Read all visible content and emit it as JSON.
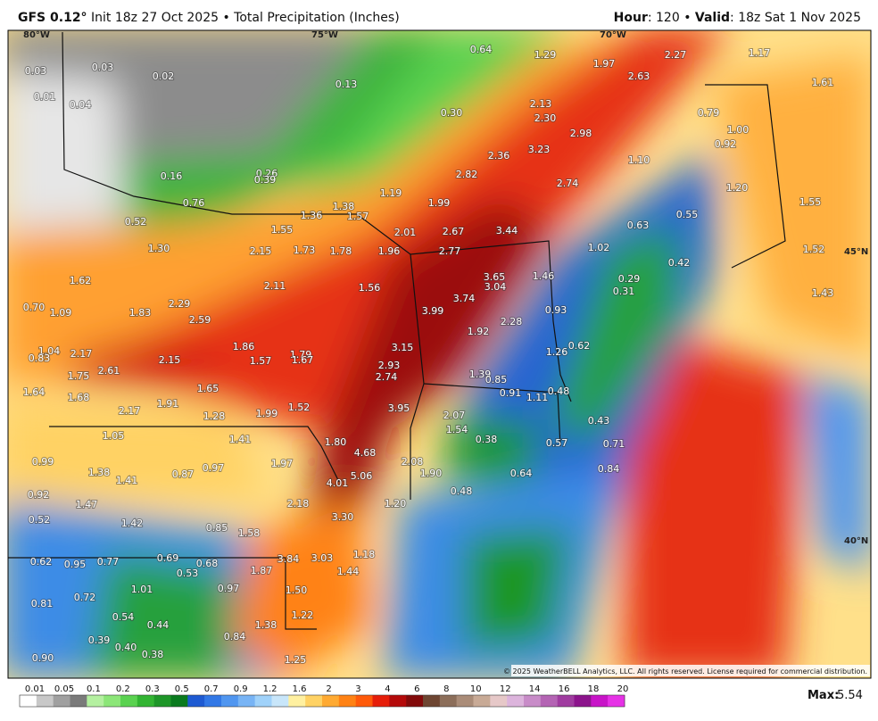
{
  "header": {
    "title_bold": "GFS 0.12°",
    "title_rest": "Init 18z 27 Oct 2025 • Total Precipitation (Inches)",
    "right_parts": [
      "Hour",
      ": 120 • ",
      "Valid",
      ": 18z Sat 1 Nov 2025"
    ]
  },
  "graticule": [
    "80°W",
    "75°W",
    "70°W",
    "45°N",
    "40°N"
  ],
  "map_labels": [
    "0.03",
    "0.03",
    "0.02",
    "0.01",
    "0.04",
    "0.13",
    "0.64",
    "1.29",
    "1.97",
    "2.27",
    "1.17",
    "1.61",
    "0.30",
    "2.13",
    "2.30",
    "2.63",
    "0.79",
    "1.00",
    "0.92",
    "2.98",
    "3.23",
    "2.36",
    "1.10",
    "0.16",
    "0.26",
    "0.39",
    "2.82",
    "2.74",
    "1.20",
    "1.19",
    "1.99",
    "0.76",
    "1.38",
    "1.57",
    "1.36",
    "0.55",
    "1.55",
    "0.52",
    "1.55",
    "0.63",
    "2.01",
    "2.67",
    "3.44",
    "1.30",
    "2.15",
    "1.73",
    "1.78",
    "1.96",
    "2.77",
    "1.02",
    "1.52",
    "0.42",
    "1.62",
    "1.56",
    "3.65",
    "3.04",
    "1.46",
    "0.29",
    "0.31",
    "1.43",
    "2.11",
    "0.70",
    "1.09",
    "1.83",
    "2.29",
    "2.59",
    "3.74",
    "3.99",
    "0.93",
    "2.28",
    "1.92",
    "0.62",
    "1.86",
    "1.04",
    "0.83",
    "2.17",
    "1.79",
    "1.67",
    "1.57",
    "3.15",
    "1.26",
    "2.61",
    "2.15",
    "1.75",
    "2.93",
    "2.74",
    "1.39",
    "0.85",
    "1.64",
    "1.65",
    "0.91",
    "1.11",
    "0.48",
    "1.68",
    "1.91",
    "1.52",
    "3.95",
    "2.17",
    "1.28",
    "1.99",
    "2.07",
    "0.43",
    "1.54",
    "1.05",
    "1.41",
    "1.80",
    "0.38",
    "0.57",
    "0.71",
    "4.68",
    "0.99",
    "2.08",
    "1.97",
    "0.97",
    "0.87",
    "1.38",
    "1.41",
    "0.64",
    "0.84",
    "5.06",
    "1.90",
    "4.01",
    "0.48",
    "0.92",
    "1.47",
    "2.18",
    "1.20",
    "3.30",
    "0.52",
    "1.42",
    "0.85",
    "1.58",
    "1.18",
    "0.62",
    "0.95",
    "0.77",
    "0.69",
    "0.68",
    "0.53",
    "3.84",
    "3.03",
    "1.87",
    "1.44",
    "1.01",
    "0.97",
    "1.50",
    "0.72",
    "0.81",
    "1.22",
    "0.54",
    "0.44",
    "1.38",
    "0.39",
    "0.84",
    "0.40",
    "0.38",
    "1.25",
    "0.90"
  ],
  "copyright": "© 2025 WeatherBELL Analytics, LLC. All rights reserved. License required for commercial distribution.",
  "colorbar": {
    "labels": [
      "0.01",
      "0.05",
      "0.1",
      "0.2",
      "0.3",
      "0.5",
      "0.7",
      "0.9",
      "1.2",
      "1.6",
      "2",
      "3",
      "4",
      "6",
      "8",
      "10",
      "12",
      "14",
      "16",
      "18",
      "20"
    ],
    "colors": [
      "#ffffff",
      "#c8c8c8",
      "#a0a0a0",
      "#7a7a7a",
      "#b4f0a0",
      "#8ce678",
      "#5ad250",
      "#32b432",
      "#1e9628",
      "#0a7a1e",
      "#1e5ad2",
      "#3278e6",
      "#5096f0",
      "#78b4f5",
      "#a0d2fa",
      "#c8e6fa",
      "#fff0a0",
      "#ffd264",
      "#ffaa32",
      "#ff8214",
      "#ff5a0a",
      "#e61e0a",
      "#b40a0a",
      "#820a0a",
      "#6e4632",
      "#8c6e5a",
      "#aa8c78",
      "#c8aa96",
      "#e6c8c8",
      "#dcb4dc",
      "#c88cc8",
      "#b464b4",
      "#a03ca0",
      "#8c148c",
      "#c814c8",
      "#e632e6"
    ]
  },
  "max": {
    "label": "Max:",
    "value": "5.54"
  }
}
